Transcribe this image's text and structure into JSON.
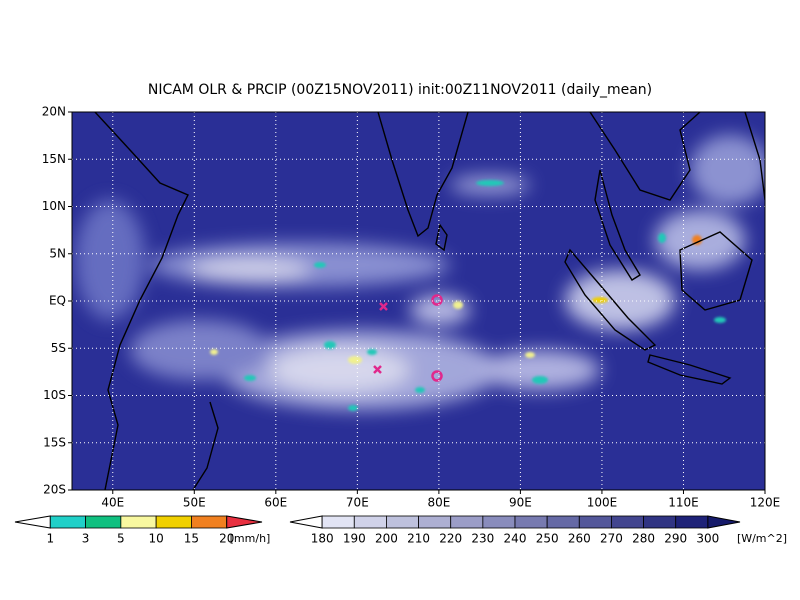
{
  "map": {
    "title": "NICAM OLR & PRCIP (00Z15NOV2011) init:00Z11NOV2011 (daily_mean)",
    "xlim": [
      35,
      120
    ],
    "ylim": [
      -20,
      20
    ],
    "xticks": [
      {
        "value": 40,
        "label": "40E"
      },
      {
        "value": 50,
        "label": "50E"
      },
      {
        "value": 60,
        "label": "60E"
      },
      {
        "value": 70,
        "label": "70E"
      },
      {
        "value": 80,
        "label": "80E"
      },
      {
        "value": 90,
        "label": "90E"
      },
      {
        "value": 100,
        "label": "100E"
      },
      {
        "value": 110,
        "label": "110E"
      },
      {
        "value": 120,
        "label": "120E"
      }
    ],
    "yticks": [
      {
        "value": 20,
        "label": "20N"
      },
      {
        "value": 15,
        "label": "15N"
      },
      {
        "value": 10,
        "label": "10N"
      },
      {
        "value": 5,
        "label": "5N"
      },
      {
        "value": 0,
        "label": "EQ"
      },
      {
        "value": -5,
        "label": "5S"
      },
      {
        "value": -10,
        "label": "10S"
      },
      {
        "value": -15,
        "label": "15S"
      },
      {
        "value": -20,
        "label": "20S"
      }
    ],
    "precip_colorbar": {
      "ticks": [
        1,
        3,
        5,
        10,
        15,
        20
      ],
      "unit": "[mm/h]"
    },
    "olr_colorbar": {
      "ticks": [
        180,
        190,
        200,
        210,
        220,
        230,
        240,
        250,
        260,
        270,
        280,
        290,
        300
      ],
      "unit": "[W/m^2]"
    }
  }
}
